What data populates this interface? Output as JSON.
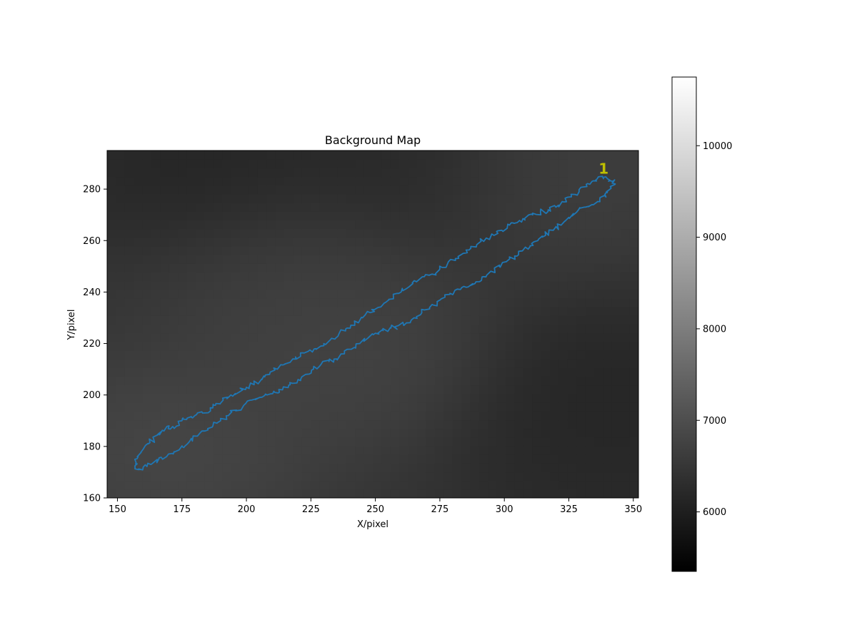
{
  "chart_data": {
    "type": "heatmap",
    "title": "Background Map",
    "xlabel": "X/pixel",
    "ylabel": "Y/pixel",
    "xlim": [
      146,
      352
    ],
    "ylim": [
      160,
      295
    ],
    "xticks": [
      150,
      175,
      200,
      225,
      250,
      275,
      300,
      325,
      350
    ],
    "yticks": [
      160,
      180,
      200,
      220,
      240,
      260,
      280
    ],
    "grid": false,
    "background": {
      "colormap": "gray",
      "description_values": "smooth background level field",
      "blobs": [
        {
          "x": 170,
          "y": 178,
          "value": 6950
        },
        {
          "x": 240,
          "y": 215,
          "value": 6850
        },
        {
          "x": 215,
          "y": 250,
          "value": 6750
        },
        {
          "x": 320,
          "y": 288,
          "value": 6750
        },
        {
          "x": 185,
          "y": 286,
          "value": 6000
        },
        {
          "x": 260,
          "y": 292,
          "value": 6100
        },
        {
          "x": 340,
          "y": 200,
          "value": 6050
        },
        {
          "x": 340,
          "y": 168,
          "value": 6150
        }
      ],
      "base_value": 6450
    },
    "colorbar": {
      "vmin": 5350,
      "vmax": 10750,
      "ticks": [
        6000,
        7000,
        8000,
        9000,
        10000
      ]
    },
    "series": [
      {
        "type": "contour",
        "color": "#1f77b4",
        "x": [
          157,
          158,
          160,
          162,
          164,
          166,
          168,
          170,
          172,
          175,
          177,
          180,
          183,
          186,
          188,
          191,
          194,
          197,
          200,
          203,
          206,
          209,
          212,
          215,
          218,
          221,
          224,
          227,
          230,
          233,
          236,
          239,
          242,
          245,
          248,
          251,
          254,
          257,
          260,
          263,
          266,
          269,
          272,
          275,
          278,
          281,
          284,
          287,
          290,
          293,
          296,
          299,
          302,
          305,
          308,
          311,
          314,
          317,
          320,
          323,
          326,
          329,
          332,
          334,
          336,
          338,
          340,
          342,
          343,
          341,
          339,
          337,
          334,
          331,
          328,
          325,
          322,
          319,
          316,
          313,
          310,
          307,
          304,
          301,
          298,
          295,
          292,
          289,
          286,
          283,
          280,
          277,
          274,
          271,
          268,
          265,
          262,
          259,
          256,
          253,
          250,
          247,
          244,
          241,
          238,
          235,
          232,
          229,
          226,
          223,
          220,
          217,
          214,
          211,
          208,
          205,
          202,
          199,
          196,
          193,
          190,
          187,
          184,
          181,
          178,
          175,
          172,
          169,
          166,
          163,
          160,
          158,
          157
        ],
        "y": [
          173,
          176,
          179,
          181,
          183,
          185,
          186,
          188,
          187,
          190,
          191,
          192,
          193,
          195,
          196,
          198,
          200,
          201,
          203,
          204,
          206,
          208,
          210,
          212,
          214,
          215,
          217,
          218,
          220,
          222,
          224,
          226,
          228,
          230,
          232,
          234,
          236,
          238,
          240,
          242,
          244,
          246,
          247,
          249,
          251,
          253,
          255,
          257,
          259,
          261,
          262,
          264,
          266,
          267,
          268,
          270,
          271,
          272,
          273,
          275,
          277,
          279,
          281,
          283,
          284,
          285,
          284,
          283,
          282,
          280,
          278,
          276,
          274,
          273,
          271,
          269,
          266,
          264,
          262,
          260,
          258,
          256,
          254,
          252,
          250,
          248,
          246,
          244,
          242,
          241,
          239,
          238,
          236,
          234,
          232,
          230,
          228,
          227,
          226,
          225,
          224,
          222,
          220,
          218,
          216,
          214,
          213,
          212,
          210,
          208,
          206,
          204,
          202,
          201,
          200,
          199,
          198,
          196,
          194,
          192,
          190,
          188,
          186,
          184,
          182,
          180,
          178,
          176,
          175,
          173,
          172,
          171,
          173
        ]
      }
    ],
    "annotations": [
      {
        "text": "1",
        "x": 338.5,
        "y": 286,
        "color": "#bfbf00"
      }
    ]
  }
}
